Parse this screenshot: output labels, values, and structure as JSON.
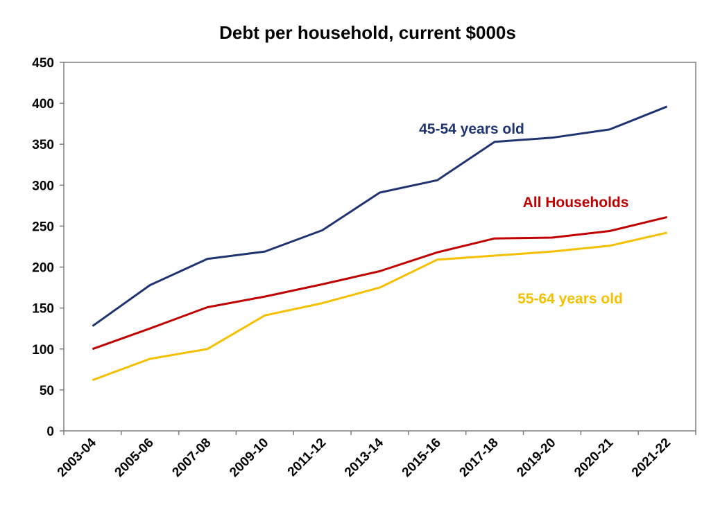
{
  "chart_data": {
    "type": "line",
    "title": "Debt per household, current $000s",
    "xlabel": "",
    "ylabel": "",
    "categories": [
      "2003-04",
      "2005-06",
      "2007-08",
      "2009-10",
      "2011-12",
      "2013-14",
      "2015-16",
      "2017-18",
      "2019-20",
      "2020-21",
      "2021-22"
    ],
    "ylim": [
      0,
      450
    ],
    "yticks": [
      0,
      50,
      100,
      150,
      200,
      250,
      300,
      350,
      400,
      450
    ],
    "grid": false,
    "legend": "none",
    "series": [
      {
        "name": "45-54 years old",
        "color": "#1f3470",
        "values": [
          128,
          178,
          210,
          219,
          245,
          291,
          306,
          353,
          358,
          368,
          396
        ]
      },
      {
        "name": "All Households",
        "color": "#c00000",
        "values": [
          100,
          125,
          151,
          164,
          179,
          195,
          218,
          235,
          236,
          244,
          261
        ]
      },
      {
        "name": "55-64 years old",
        "color": "#f5c000",
        "values": [
          62,
          88,
          100,
          141,
          156,
          175,
          209,
          214,
          219,
          226,
          242
        ]
      }
    ]
  }
}
